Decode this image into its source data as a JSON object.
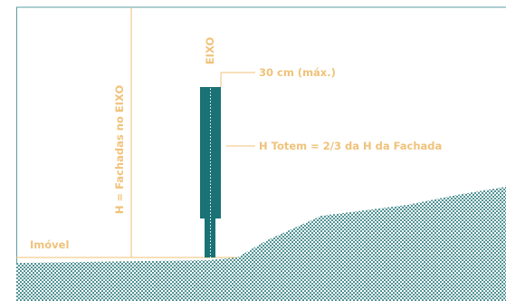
{
  "diagram": {
    "labels": {
      "height_axis": "H = Fachadas no EIXO",
      "axis": "EIXO",
      "max_width": "30 cm (máx.)",
      "totem_height": "H Totem = 2/3 da H da Fachada",
      "property": "Imóvel"
    },
    "colors": {
      "accent": "#f0c27a",
      "totem": "#1a7275",
      "border": "#5a9fa3",
      "ground_dots": "#1a7275",
      "background": "#ffffff"
    }
  }
}
